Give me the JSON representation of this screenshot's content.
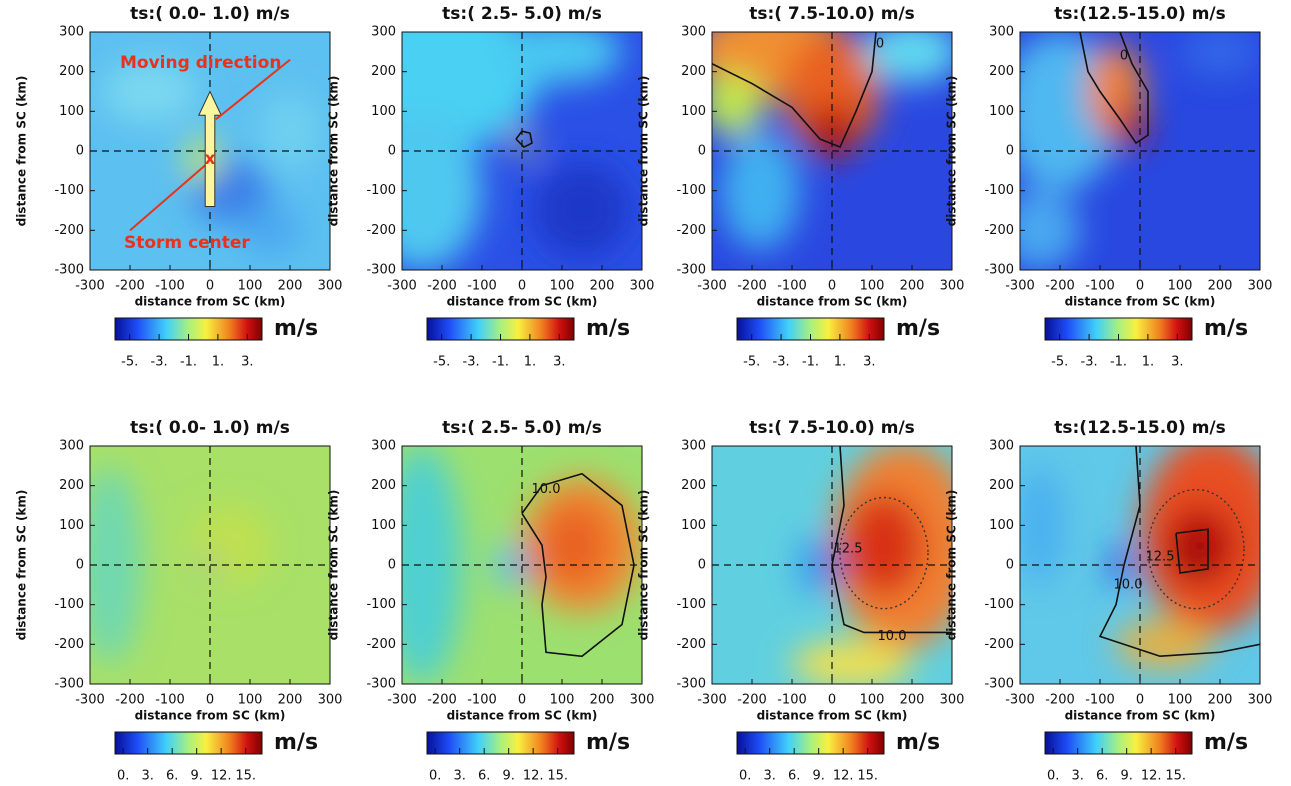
{
  "chart_data": [
    {
      "type": "heatmap",
      "title": "ts:( 0.0- 1.0) m/s",
      "xlabel": "distance from SC (km)",
      "ylabel": "distance from SC (km)",
      "xlim": [
        -300,
        300
      ],
      "ylim": [
        -300,
        300
      ],
      "xticks": [
        -300,
        -200,
        -100,
        0,
        100,
        200,
        300
      ],
      "yticks": [
        -300,
        -200,
        -100,
        0,
        100,
        200,
        300
      ],
      "colorbar_label": "m/s",
      "colorbar_lim": [
        -6,
        4
      ],
      "colorbar_ticks": [
        {
          "value": -5,
          "label": "-5."
        },
        {
          "value": -3,
          "label": "-3."
        },
        {
          "value": -1,
          "label": "-1."
        },
        {
          "value": 1,
          "label": "1."
        },
        {
          "value": 3,
          "label": "3."
        }
      ],
      "annotations": [
        "Moving direction",
        "Storm center",
        "x"
      ]
    },
    {
      "type": "heatmap",
      "title": "ts:( 2.5- 5.0) m/s",
      "xlabel": "distance from SC (km)",
      "ylabel": "distance from SC (km)",
      "xlim": [
        -300,
        300
      ],
      "ylim": [
        -300,
        300
      ],
      "xticks": [
        -300,
        -200,
        -100,
        0,
        100,
        200,
        300
      ],
      "yticks": [
        -300,
        -200,
        -100,
        0,
        100,
        200,
        300
      ],
      "colorbar_label": "m/s",
      "colorbar_lim": [
        -6,
        4
      ],
      "colorbar_ticks": [
        {
          "value": -5,
          "label": "-5."
        },
        {
          "value": -3,
          "label": "-3."
        },
        {
          "value": -1,
          "label": "-1."
        },
        {
          "value": 1,
          "label": "1."
        },
        {
          "value": 3,
          "label": "3."
        }
      ]
    },
    {
      "type": "heatmap",
      "title": "ts:( 7.5-10.0) m/s",
      "xlabel": "distance from SC (km)",
      "ylabel": "distance from SC (km)",
      "xlim": [
        -300,
        300
      ],
      "ylim": [
        -300,
        300
      ],
      "xticks": [
        -300,
        -200,
        -100,
        0,
        100,
        200,
        300
      ],
      "yticks": [
        -300,
        -200,
        -100,
        0,
        100,
        200,
        300
      ],
      "colorbar_label": "m/s",
      "colorbar_lim": [
        -6,
        4
      ],
      "colorbar_ticks": [
        {
          "value": -5,
          "label": "-5."
        },
        {
          "value": -3,
          "label": "-3."
        },
        {
          "value": -1,
          "label": "-1."
        },
        {
          "value": 1,
          "label": "1."
        },
        {
          "value": 3,
          "label": "3."
        }
      ],
      "contour_labels": [
        "0"
      ]
    },
    {
      "type": "heatmap",
      "title": "ts:(12.5-15.0) m/s",
      "xlabel": "distance from SC (km)",
      "ylabel": "distance from SC (km)",
      "xlim": [
        -300,
        300
      ],
      "ylim": [
        -300,
        300
      ],
      "xticks": [
        -300,
        -200,
        -100,
        0,
        100,
        200,
        300
      ],
      "yticks": [
        -300,
        -200,
        -100,
        0,
        100,
        200,
        300
      ],
      "colorbar_label": "m/s",
      "colorbar_lim": [
        -6,
        4
      ],
      "colorbar_ticks": [
        {
          "value": -5,
          "label": "-5."
        },
        {
          "value": -3,
          "label": "-3."
        },
        {
          "value": -1,
          "label": "-1."
        },
        {
          "value": 1,
          "label": "1."
        },
        {
          "value": 3,
          "label": "3."
        }
      ],
      "contour_labels": [
        "0"
      ]
    },
    {
      "type": "heatmap",
      "title": "ts:( 0.0- 1.0) m/s",
      "xlabel": "distance from SC (km)",
      "ylabel": "distance from SC (km)",
      "xlim": [
        -300,
        300
      ],
      "ylim": [
        -300,
        300
      ],
      "xticks": [
        -300,
        -200,
        -100,
        0,
        100,
        200,
        300
      ],
      "yticks": [
        -300,
        -200,
        -100,
        0,
        100,
        200,
        300
      ],
      "colorbar_label": "m/s",
      "colorbar_lim": [
        -1,
        17
      ],
      "colorbar_ticks": [
        {
          "value": 0,
          "label": "0."
        },
        {
          "value": 3,
          "label": "3."
        },
        {
          "value": 6,
          "label": "6."
        },
        {
          "value": 9,
          "label": "9."
        },
        {
          "value": 12,
          "label": "12."
        },
        {
          "value": 15,
          "label": "15."
        }
      ]
    },
    {
      "type": "heatmap",
      "title": "ts:( 2.5- 5.0) m/s",
      "xlabel": "distance from SC (km)",
      "ylabel": "distance from SC (km)",
      "xlim": [
        -300,
        300
      ],
      "ylim": [
        -300,
        300
      ],
      "xticks": [
        -300,
        -200,
        -100,
        0,
        100,
        200,
        300
      ],
      "yticks": [
        -300,
        -200,
        -100,
        0,
        100,
        200,
        300
      ],
      "colorbar_label": "m/s",
      "colorbar_lim": [
        -1,
        17
      ],
      "colorbar_ticks": [
        {
          "value": 0,
          "label": "0."
        },
        {
          "value": 3,
          "label": "3."
        },
        {
          "value": 6,
          "label": "6."
        },
        {
          "value": 9,
          "label": "9."
        },
        {
          "value": 12,
          "label": "12."
        },
        {
          "value": 15,
          "label": "15."
        }
      ],
      "contour_labels": [
        "10.0"
      ]
    },
    {
      "type": "heatmap",
      "title": "ts:( 7.5-10.0) m/s",
      "xlabel": "distance from SC (km)",
      "ylabel": "distance from SC (km)",
      "xlim": [
        -300,
        300
      ],
      "ylim": [
        -300,
        300
      ],
      "xticks": [
        -300,
        -200,
        -100,
        0,
        100,
        200,
        300
      ],
      "yticks": [
        -300,
        -200,
        -100,
        0,
        100,
        200,
        300
      ],
      "colorbar_label": "m/s",
      "colorbar_lim": [
        -1,
        17
      ],
      "colorbar_ticks": [
        {
          "value": 0,
          "label": "0."
        },
        {
          "value": 3,
          "label": "3."
        },
        {
          "value": 6,
          "label": "6."
        },
        {
          "value": 9,
          "label": "9."
        },
        {
          "value": 12,
          "label": "12."
        },
        {
          "value": 15,
          "label": "15."
        }
      ],
      "contour_labels": [
        "12.5",
        "10.0"
      ]
    },
    {
      "type": "heatmap",
      "title": "ts:(12.5-15.0) m/s",
      "xlabel": "distance from SC (km)",
      "ylabel": "distance from SC (km)",
      "xlim": [
        -300,
        300
      ],
      "ylim": [
        -300,
        300
      ],
      "xticks": [
        -300,
        -200,
        -100,
        0,
        100,
        200,
        300
      ],
      "yticks": [
        -300,
        -200,
        -100,
        0,
        100,
        200,
        300
      ],
      "colorbar_label": "m/s",
      "colorbar_lim": [
        -1,
        17
      ],
      "colorbar_ticks": [
        {
          "value": 0,
          "label": "0."
        },
        {
          "value": 3,
          "label": "3."
        },
        {
          "value": 6,
          "label": "6."
        },
        {
          "value": 9,
          "label": "9."
        },
        {
          "value": 12,
          "label": "12."
        },
        {
          "value": 15,
          "label": "15."
        }
      ],
      "contour_labels": [
        "10.0",
        "12.5"
      ]
    }
  ]
}
